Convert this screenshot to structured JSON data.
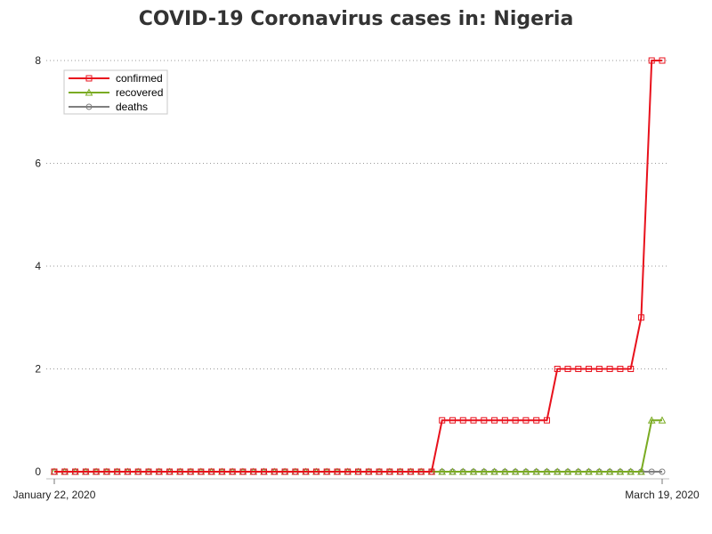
{
  "chart_data": {
    "type": "line",
    "title": "COVID-19 Coronavirus cases in: Nigeria",
    "xlabel": "",
    "ylabel": "",
    "x_start": "January 22, 2020",
    "x_end": "March 19, 2020",
    "x_tick_labels": [
      "January 22, 2020",
      "March 19, 2020"
    ],
    "ylim": [
      0,
      8
    ],
    "y_ticks": [
      0,
      2,
      4,
      6,
      8
    ],
    "grid": "horizontal-dotted",
    "legend_position": "top-left",
    "series": [
      {
        "name": "confirmed",
        "color": "#e8111c",
        "marker": "square",
        "values": [
          0,
          0,
          0,
          0,
          0,
          0,
          0,
          0,
          0,
          0,
          0,
          0,
          0,
          0,
          0,
          0,
          0,
          0,
          0,
          0,
          0,
          0,
          0,
          0,
          0,
          0,
          0,
          0,
          0,
          0,
          0,
          0,
          0,
          0,
          0,
          0,
          0,
          1,
          1,
          1,
          1,
          1,
          1,
          1,
          1,
          1,
          1,
          1,
          2,
          2,
          2,
          2,
          2,
          2,
          2,
          2,
          3,
          8,
          8
        ]
      },
      {
        "name": "recovered",
        "color": "#7aab22",
        "marker": "triangle",
        "values": [
          0,
          0,
          0,
          0,
          0,
          0,
          0,
          0,
          0,
          0,
          0,
          0,
          0,
          0,
          0,
          0,
          0,
          0,
          0,
          0,
          0,
          0,
          0,
          0,
          0,
          0,
          0,
          0,
          0,
          0,
          0,
          0,
          0,
          0,
          0,
          0,
          0,
          0,
          0,
          0,
          0,
          0,
          0,
          0,
          0,
          0,
          0,
          0,
          0,
          0,
          0,
          0,
          0,
          0,
          0,
          0,
          0,
          1,
          1
        ]
      },
      {
        "name": "deaths",
        "color": "#7f7f7f",
        "marker": "circle",
        "values": [
          0,
          0,
          0,
          0,
          0,
          0,
          0,
          0,
          0,
          0,
          0,
          0,
          0,
          0,
          0,
          0,
          0,
          0,
          0,
          0,
          0,
          0,
          0,
          0,
          0,
          0,
          0,
          0,
          0,
          0,
          0,
          0,
          0,
          0,
          0,
          0,
          0,
          0,
          0,
          0,
          0,
          0,
          0,
          0,
          0,
          0,
          0,
          0,
          0,
          0,
          0,
          0,
          0,
          0,
          0,
          0,
          0,
          0,
          0
        ]
      }
    ]
  }
}
